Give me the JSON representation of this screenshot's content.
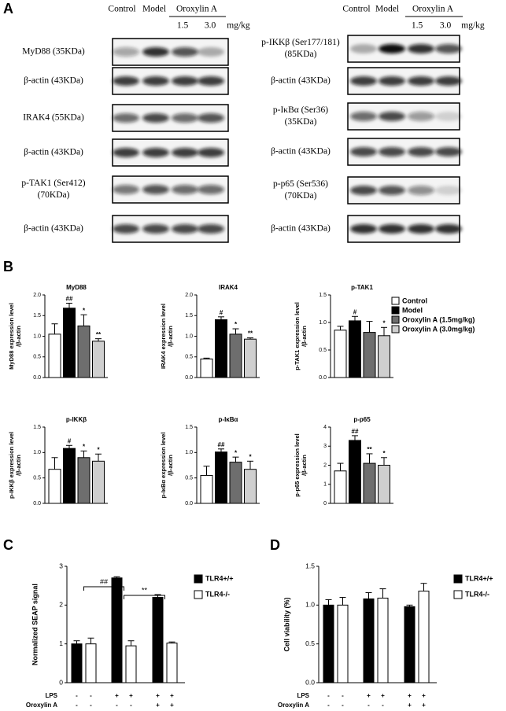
{
  "panel_labels": [
    "A",
    "B",
    "C",
    "D"
  ],
  "blots": [
    {
      "headers": [
        "Control",
        "Model",
        "Oroxylin A"
      ],
      "doses": [
        "1.5",
        "3.0"
      ],
      "dose_unit": "mg/kg",
      "rows": [
        [
          "MyD88 (35KDa)"
        ],
        [
          "β-actin (43KDa)"
        ],
        [
          "IRAK4 (55KDa)"
        ],
        [
          "β-actin (43KDa)"
        ],
        [
          "p-TAK1 (Ser412)",
          "(70KDa)"
        ],
        [
          "β-actin (43KDa)"
        ]
      ]
    },
    {
      "headers": [
        "Control",
        "Model",
        "Oroxylin A"
      ],
      "doses": [
        "1.5",
        "3.0"
      ],
      "dose_unit": "mg/kg",
      "rows": [
        [
          "p-IKKβ (Ser177/181)",
          "(85KDa)"
        ],
        [
          "β-actin (43KDa)"
        ],
        [
          "p-IκBα (Ser36)",
          "(35KDa)"
        ],
        [
          "β-actin (43KDa)"
        ],
        [
          "p-p65 (Ser536)",
          "(70KDa)"
        ],
        [
          "β-actin (43KDa)"
        ]
      ]
    }
  ],
  "legend": {
    "names": [
      "Control",
      "Model",
      "Oroxylin A (1.5mg/kg)",
      "Oroxylin A (3.0mg/kg)"
    ],
    "colors": [
      "#ffffff",
      "#000000",
      "#6e6e6e",
      "#cfcfcf"
    ]
  },
  "chart_data": [
    {
      "type": "bar",
      "title": "MyD88",
      "y_label": [
        "MyD88 expression level",
        "/β-actin"
      ],
      "values": [
        1.05,
        1.68,
        1.25,
        0.88
      ],
      "errors": [
        0.25,
        0.12,
        0.27,
        0.06
      ],
      "significance": [
        null,
        "##",
        "*",
        "**"
      ],
      "ylim": [
        0,
        2
      ],
      "yticks": [
        {
          "value": 0,
          "label": "0.0"
        },
        0.5,
        {
          "value": 1,
          "label": "1.0"
        },
        1.5,
        {
          "value": 2,
          "label": "2.0"
        }
      ]
    },
    {
      "type": "bar",
      "title": "IRAK4",
      "y_label": [
        "IRAK4 expression level",
        "/β-actin"
      ],
      "values": [
        0.45,
        1.4,
        1.05,
        0.93
      ],
      "errors": [
        0.02,
        0.07,
        0.13,
        0.03
      ],
      "significance": [
        null,
        "#",
        "*",
        "**"
      ],
      "ylim": [
        0,
        2
      ],
      "yticks": [
        {
          "value": 0,
          "label": "0.0"
        },
        0.5,
        {
          "value": 1,
          "label": "1.0"
        },
        1.5,
        {
          "value": 2,
          "label": "2.0"
        }
      ]
    },
    {
      "type": "bar",
      "title": "p-TAK1",
      "y_label": [
        "p-TAK1 expression level",
        "/β-actin"
      ],
      "values": [
        0.86,
        1.03,
        0.82,
        0.76
      ],
      "errors": [
        0.07,
        0.08,
        0.2,
        0.15
      ],
      "significance": [
        null,
        "#",
        null,
        "*"
      ],
      "ylim": [
        0,
        1.5
      ],
      "yticks": [
        {
          "value": 0,
          "label": "0.0"
        },
        0.5,
        {
          "value": 1,
          "label": "1.0"
        },
        1.5
      ]
    },
    {
      "type": "bar",
      "title": "p-IKKβ",
      "y_label": [
        "p-IKKβ expression level",
        "/β-actin"
      ],
      "values": [
        0.67,
        1.08,
        0.9,
        0.83
      ],
      "errors": [
        0.23,
        0.06,
        0.13,
        0.14
      ],
      "significance": [
        null,
        "#",
        "*",
        "*"
      ],
      "ylim": [
        0,
        1.5
      ],
      "yticks": [
        {
          "value": 0,
          "label": "0.0"
        },
        0.5,
        {
          "value": 1,
          "label": "1.0"
        },
        1.5
      ]
    },
    {
      "type": "bar",
      "title": "p-IκBα",
      "y_label": [
        "p-IκBα expression level",
        "/β-actin"
      ],
      "values": [
        0.55,
        1.01,
        0.81,
        0.67
      ],
      "errors": [
        0.18,
        0.06,
        0.1,
        0.16
      ],
      "significance": [
        null,
        "##",
        "*",
        "*"
      ],
      "ylim": [
        0,
        1.5
      ],
      "yticks": [
        {
          "value": 0,
          "label": "0.0"
        },
        0.5,
        {
          "value": 1,
          "label": "1.0"
        },
        1.5
      ]
    },
    {
      "type": "bar",
      "title": "p-p65",
      "y_label": [
        "p-p65 expression level",
        "/β-actin"
      ],
      "values": [
        1.7,
        3.3,
        2.1,
        2.0
      ],
      "errors": [
        0.4,
        0.25,
        0.5,
        0.4
      ],
      "significance": [
        null,
        "##",
        "**",
        "*"
      ],
      "ylim": [
        0,
        4
      ],
      "yticks": [
        0,
        1,
        2,
        3,
        4
      ]
    },
    {
      "type": "grouped_bar",
      "y_label": "Normalized SEAP signal",
      "series": [
        {
          "name": "TLR4+/+",
          "color": "#000000",
          "values": [
            1.0,
            2.7,
            2.2
          ],
          "errors": [
            0.08,
            0.03,
            0.07
          ]
        },
        {
          "name": "TLR4-/-",
          "color": "#ffffff",
          "values": [
            1.0,
            0.95,
            1.02
          ],
          "errors": [
            0.15,
            0.13,
            0.03
          ]
        }
      ],
      "conditions": [
        {
          "label": "LPS",
          "signs": [
            "-",
            "-",
            "+",
            "+",
            "+",
            "+"
          ]
        },
        {
          "label": "Oroxylin A",
          "signs": [
            "-",
            "-",
            "-",
            "-",
            "+",
            "+"
          ]
        }
      ],
      "comparisons": [
        "##",
        "**"
      ],
      "ylim": [
        0,
        3
      ],
      "yticks": [
        0,
        1,
        2,
        3
      ]
    },
    {
      "type": "grouped_bar",
      "y_label": "Cell viability (%)",
      "series": [
        {
          "name": "TLR4+/+",
          "color": "#000000",
          "values": [
            1.0,
            1.08,
            0.98
          ],
          "errors": [
            0.07,
            0.08,
            0.02
          ]
        },
        {
          "name": "TLR4-/-",
          "color": "#ffffff",
          "values": [
            1.0,
            1.09,
            1.18
          ],
          "errors": [
            0.1,
            0.12,
            0.1
          ]
        }
      ],
      "conditions": [
        {
          "label": "LPS",
          "signs": [
            "-",
            "-",
            "+",
            "+",
            "+",
            "+"
          ]
        },
        {
          "label": "Oroxylin A",
          "signs": [
            "-",
            "-",
            "-",
            "-",
            "+",
            "+"
          ]
        }
      ],
      "ylim": [
        0,
        1.5
      ],
      "yticks": [
        {
          "value": 0,
          "label": "0.0"
        },
        0.5,
        {
          "value": 1,
          "label": "1.0"
        },
        1.5
      ]
    }
  ]
}
